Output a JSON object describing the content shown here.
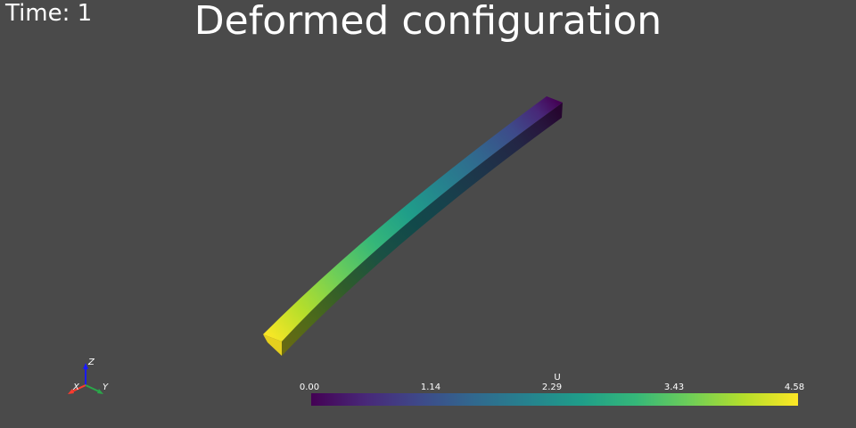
{
  "overlay": {
    "time_text": "Time: 1",
    "title": "Deformed configuration"
  },
  "orientation_axes": {
    "z_label": "Z",
    "x_label": "X",
    "y_label": "Y",
    "z_color": "#1a1aff",
    "x_color": "#ff3b2e",
    "y_color": "#2aa84a"
  },
  "scalar_bar": {
    "title": "U",
    "ticks": [
      "0.00",
      "1.14",
      "2.29",
      "3.43",
      "4.58"
    ],
    "range": [
      0.0,
      4.58
    ],
    "colormap": "viridis"
  },
  "colors": {
    "background": "#4a4a4a",
    "text": "#ffffff"
  }
}
